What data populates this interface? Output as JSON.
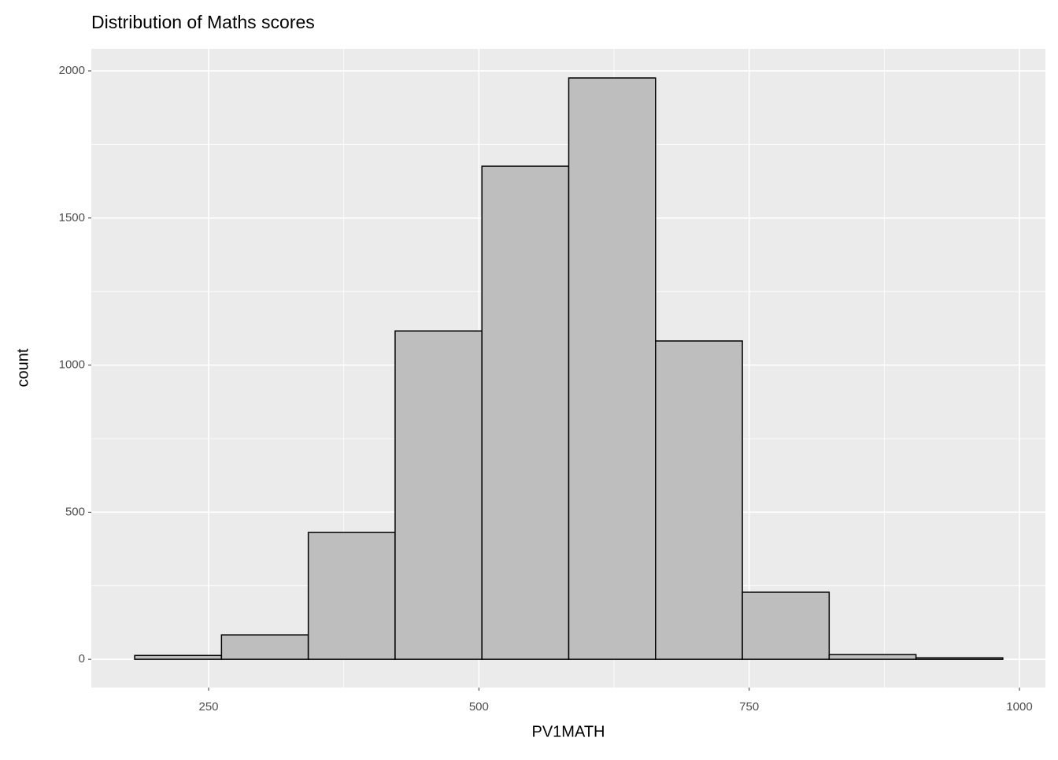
{
  "chart_data": {
    "type": "histogram",
    "title": "Distribution of Maths scores",
    "x_label": "PV1MATH",
    "y_label": "count",
    "bins": [
      181.6,
      261.9,
      342.2,
      422.5,
      502.8,
      583.1,
      663.4,
      743.7,
      824.0,
      904.3,
      984.6
    ],
    "values": [
      13,
      83,
      431,
      1116,
      1676,
      1976,
      1082,
      228,
      16,
      5
    ],
    "color": "#bebebe",
    "edge_color": "#000000",
    "xlim": [
      141.5,
      1024
    ],
    "ylim": [
      -96,
      2075
    ],
    "xticks": [
      250,
      500,
      750,
      1000
    ],
    "yticks": [
      0,
      500,
      1000,
      1500,
      2000
    ],
    "grid": true
  }
}
